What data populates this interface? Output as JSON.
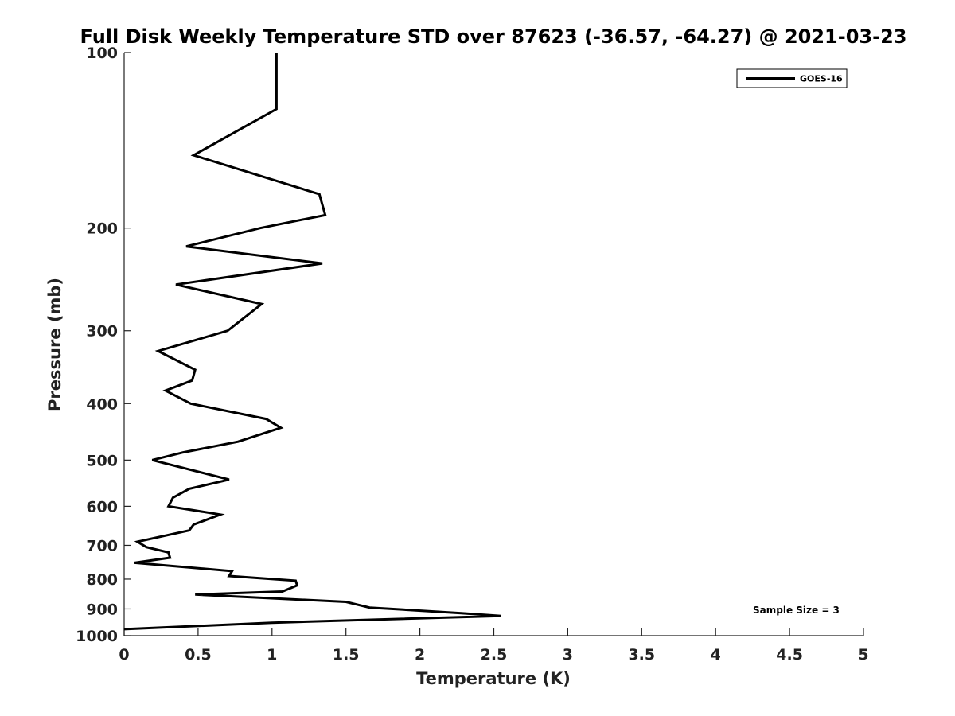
{
  "chart_data": {
    "type": "line",
    "title": "Full Disk Weekly Temperature STD over 87623 (-36.57, -64.27) @ 2021-03-23",
    "xlabel": "Temperature (K)",
    "ylabel": "Pressure (mb)",
    "xlim": [
      0,
      5
    ],
    "ylim": [
      1000,
      100
    ],
    "y_scale": "log",
    "y_inverted": true,
    "x_ticks": [
      "0",
      "0.5",
      "1",
      "1.5",
      "2",
      "2.5",
      "3",
      "3.5",
      "4",
      "4.5",
      "5"
    ],
    "x_tick_values": [
      0,
      0.5,
      1,
      1.5,
      2,
      2.5,
      3,
      3.5,
      4,
      4.5,
      5
    ],
    "y_ticks": [
      "100",
      "200",
      "300",
      "400",
      "500",
      "600",
      "700",
      "800",
      "900",
      "1000"
    ],
    "y_tick_values": [
      100,
      200,
      300,
      400,
      500,
      600,
      700,
      800,
      900,
      1000
    ],
    "grid": false,
    "legend_position": "top-right",
    "annotation": "Sample Size = 3",
    "series": [
      {
        "name": "GOES-16",
        "color": "#000000",
        "points": [
          [
            1.03,
            100
          ],
          [
            1.03,
            125
          ],
          [
            0.47,
            150
          ],
          [
            1.32,
            175
          ],
          [
            1.36,
            190
          ],
          [
            0.92,
            200
          ],
          [
            0.42,
            215
          ],
          [
            1.34,
            230
          ],
          [
            0.35,
            250
          ],
          [
            0.93,
            270
          ],
          [
            0.7,
            300
          ],
          [
            0.23,
            325
          ],
          [
            0.48,
            350
          ],
          [
            0.46,
            365
          ],
          [
            0.28,
            380
          ],
          [
            0.45,
            400
          ],
          [
            0.96,
            425
          ],
          [
            1.06,
            440
          ],
          [
            0.77,
            465
          ],
          [
            0.4,
            485
          ],
          [
            0.19,
            500
          ],
          [
            0.71,
            540
          ],
          [
            0.44,
            560
          ],
          [
            0.33,
            580
          ],
          [
            0.3,
            600
          ],
          [
            0.65,
            620
          ],
          [
            0.47,
            645
          ],
          [
            0.44,
            660
          ],
          [
            0.09,
            690
          ],
          [
            0.15,
            705
          ],
          [
            0.3,
            720
          ],
          [
            0.31,
            735
          ],
          [
            0.07,
            750
          ],
          [
            0.73,
            775
          ],
          [
            0.71,
            790
          ],
          [
            1.16,
            805
          ],
          [
            1.17,
            820
          ],
          [
            1.07,
            840
          ],
          [
            0.48,
            850
          ],
          [
            1.5,
            875
          ],
          [
            1.66,
            895
          ],
          [
            2.28,
            915
          ],
          [
            2.55,
            925
          ],
          [
            1.0,
            950
          ],
          [
            0.0,
            975
          ]
        ]
      }
    ]
  }
}
